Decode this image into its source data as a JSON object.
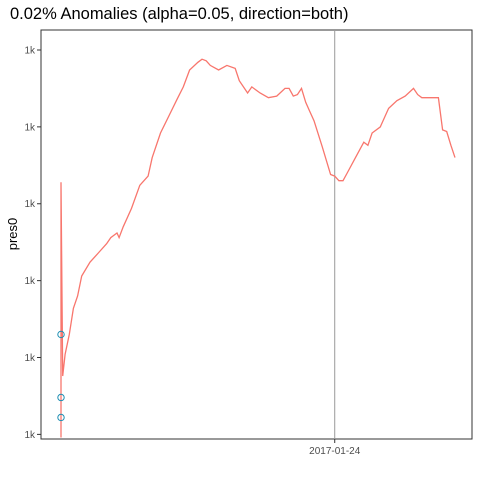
{
  "chart_data": {
    "type": "line",
    "title": "0.02% Anomalies (alpha=0.05, direction=both)",
    "xlabel": "",
    "ylabel": "pres0",
    "x_ticks": [
      {
        "label": "2017-01-24",
        "value": 0.71
      }
    ],
    "y_ticks": [
      {
        "label": "1k",
        "value": 1000
      },
      {
        "label": "1k",
        "value": 1050
      },
      {
        "label": "1k",
        "value": 1100
      },
      {
        "label": "1k",
        "value": 1150
      },
      {
        "label": "1k",
        "value": 1200
      },
      {
        "label": "1k",
        "value": 1250
      }
    ],
    "xlim": [
      0.0,
      1.0
    ],
    "ylim": [
      997,
      1263
    ],
    "vline_x": 0.71,
    "grid": false,
    "series": [
      {
        "color": "#F8766D",
        "x": [
          0.05,
          0.05,
          0.054,
          0.06,
          0.07,
          0.08,
          0.09,
          0.1,
          0.12,
          0.14,
          0.16,
          0.17,
          0.185,
          0.19,
          0.2,
          0.22,
          0.24,
          0.26,
          0.27,
          0.29,
          0.31,
          0.33,
          0.345,
          0.36,
          0.38,
          0.39,
          0.4,
          0.41,
          0.43,
          0.45,
          0.47,
          0.48,
          0.5,
          0.51,
          0.53,
          0.55,
          0.57,
          0.59,
          0.6,
          0.61,
          0.62,
          0.63,
          0.64,
          0.65,
          0.66,
          0.68,
          0.7,
          0.71,
          0.72,
          0.73,
          0.74,
          0.76,
          0.78,
          0.79,
          0.8,
          0.82,
          0.84,
          0.86,
          0.88,
          0.9,
          0.91,
          0.92,
          0.96,
          0.97,
          0.98,
          0.99,
          1.0
        ],
        "y": [
          998,
          1164,
          1038,
          1052,
          1065,
          1082,
          1090,
          1103,
          1112,
          1118,
          1124,
          1128,
          1131,
          1128,
          1135,
          1147,
          1162,
          1168,
          1180,
          1196,
          1207,
          1218,
          1226,
          1237,
          1242,
          1244,
          1243,
          1240,
          1237,
          1240,
          1238,
          1230,
          1222,
          1226,
          1222,
          1219,
          1220,
          1225,
          1225,
          1220,
          1221,
          1225,
          1216,
          1210,
          1204,
          1187,
          1169,
          1168,
          1165,
          1165,
          1170,
          1180,
          1190,
          1188,
          1196,
          1200,
          1212,
          1217,
          1220,
          1225,
          1221,
          1219,
          1219,
          1198,
          1197,
          1188,
          1180
        ]
      }
    ],
    "anomalies": {
      "color": "#1F8FB3",
      "x": [
        0.05,
        0.05,
        0.05
      ],
      "y": [
        1065,
        1024,
        1011
      ]
    }
  }
}
